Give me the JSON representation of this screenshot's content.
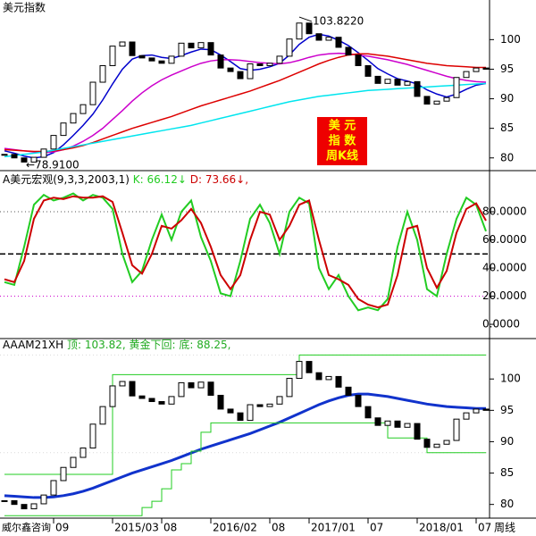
{
  "chart_data": [
    {
      "type": "candlestick",
      "title": "美元指数",
      "values": [
        80.6,
        80.0,
        79.3,
        80.1,
        81.5,
        83.8,
        85.9,
        87.5,
        89.0,
        92.8,
        95.6,
        98.9,
        99.6,
        97.3,
        96.9,
        96.4,
        96.0,
        97.2,
        99.4,
        98.6,
        99.5,
        97.4,
        95.2,
        94.6,
        93.4,
        95.9,
        95.6,
        96.0,
        97.2,
        100.1,
        102.8,
        101.0,
        99.9,
        100.4,
        98.7,
        97.4,
        95.6,
        93.8,
        92.6,
        93.3,
        92.3,
        92.9,
        90.4,
        89.1,
        89.6,
        90.2,
        93.6,
        94.6,
        95.2,
        95.0
      ],
      "color_up": "#ffffff",
      "color_down": "#000000",
      "edge_color": "#000000",
      "lines": [
        {
          "color": "#0000cc",
          "values": [
            81.2,
            80.8,
            80.3,
            80.0,
            80.2,
            80.9,
            82.2,
            83.8,
            85.5,
            87.4,
            89.8,
            92.5,
            95.0,
            96.7,
            97.3,
            97.4,
            97.0,
            96.8,
            97.3,
            97.9,
            98.4,
            98.3,
            97.4,
            96.3,
            95.1,
            94.8,
            95.0,
            95.4,
            96.0,
            97.4,
            99.2,
            100.4,
            100.9,
            100.6,
            99.9,
            99.0,
            97.8,
            96.5,
            95.1,
            94.2,
            93.4,
            93.0,
            92.5,
            91.5,
            90.8,
            90.3,
            90.8,
            91.6,
            92.3,
            92.6
          ]
        },
        {
          "color": "#cc00cc",
          "values": [
            81.6,
            81.4,
            81.2,
            81.0,
            80.9,
            81.0,
            81.4,
            82.0,
            82.8,
            83.8,
            85.0,
            86.5,
            88.0,
            89.6,
            91.0,
            92.2,
            93.2,
            94.0,
            94.7,
            95.4,
            96.0,
            96.4,
            96.6,
            96.6,
            96.5,
            96.3,
            96.1,
            96.0,
            95.9,
            96.1,
            96.5,
            97.0,
            97.4,
            97.6,
            97.7,
            97.6,
            97.4,
            97.2,
            96.9,
            96.6,
            96.2,
            95.8,
            95.3,
            94.8,
            94.3,
            93.8,
            93.4,
            93.1,
            92.9,
            92.8
          ]
        },
        {
          "color": "#dd0000",
          "values": [
            81.4,
            81.3,
            81.2,
            81.1,
            81.1,
            81.2,
            81.4,
            81.7,
            82.1,
            82.6,
            83.2,
            83.8,
            84.4,
            85.0,
            85.5,
            86.0,
            86.5,
            87.0,
            87.6,
            88.2,
            88.8,
            89.3,
            89.8,
            90.3,
            90.8,
            91.3,
            91.9,
            92.5,
            93.1,
            93.8,
            94.5,
            95.2,
            95.9,
            96.5,
            97.0,
            97.4,
            97.6,
            97.6,
            97.4,
            97.2,
            96.9,
            96.6,
            96.3,
            96.0,
            95.8,
            95.6,
            95.5,
            95.4,
            95.3,
            95.3
          ]
        },
        {
          "color": "#00e5ee",
          "values": [
            80.2,
            80.4,
            80.6,
            80.8,
            81.0,
            81.3,
            81.6,
            81.9,
            82.2,
            82.5,
            82.8,
            83.1,
            83.4,
            83.7,
            84.0,
            84.3,
            84.6,
            84.9,
            85.2,
            85.5,
            85.9,
            86.3,
            86.7,
            87.1,
            87.5,
            87.9,
            88.3,
            88.7,
            89.1,
            89.5,
            89.8,
            90.1,
            90.4,
            90.6,
            90.8,
            91.0,
            91.2,
            91.4,
            91.5,
            91.6,
            91.7,
            91.8,
            91.9,
            92.0,
            92.1,
            92.2,
            92.3,
            92.4,
            92.5,
            92.6
          ]
        }
      ],
      "annotations": [
        {
          "value": 103.822,
          "label": "103.8220"
        },
        {
          "value": 78.91,
          "label": "←78.9100"
        }
      ],
      "badge": [
        "美  元",
        "指  数",
        "周K线"
      ],
      "ylim": [
        78.0,
        106.7
      ],
      "yticks": [
        80,
        85,
        90,
        95,
        100
      ]
    },
    {
      "type": "kd",
      "title": "A美元宏观(9,3,3,2003,1)",
      "series": [
        {
          "name": "K",
          "label": "K: 66.12↓",
          "color": "#22cc22",
          "values": [
            30,
            28,
            55,
            85,
            92,
            88,
            90,
            93,
            88,
            92,
            90,
            82,
            50,
            30,
            38,
            60,
            78,
            60,
            80,
            88,
            62,
            45,
            22,
            20,
            45,
            75,
            85,
            72,
            50,
            80,
            90,
            86,
            40,
            25,
            35,
            20,
            10,
            12,
            10,
            18,
            55,
            80,
            60,
            25,
            20,
            50,
            75,
            90,
            85,
            66.12
          ]
        },
        {
          "name": "D",
          "label": "D: 73.66↓,",
          "color": "#cc0000",
          "values": [
            32,
            30,
            45,
            75,
            88,
            90,
            89,
            91,
            90,
            90,
            91,
            87,
            65,
            42,
            36,
            50,
            70,
            68,
            74,
            82,
            72,
            55,
            35,
            25,
            35,
            60,
            80,
            78,
            60,
            70,
            85,
            88,
            60,
            35,
            32,
            28,
            18,
            14,
            12,
            14,
            35,
            68,
            70,
            40,
            26,
            38,
            65,
            82,
            86,
            73.66
          ]
        }
      ],
      "levels": [
        {
          "value": 80,
          "color": "#555555"
        },
        {
          "value": 50,
          "color": "#000000"
        },
        {
          "value": 20,
          "color": "#cc00cc"
        }
      ],
      "ylim": [
        -9.5,
        108.6
      ],
      "yticks": [
        {
          "value": 80,
          "label": "80.0000"
        },
        {
          "value": 60,
          "label": "60.0000"
        },
        {
          "value": 40,
          "label": "40.0000"
        },
        {
          "value": 20,
          "label": "20.0000"
        },
        {
          "value": 0,
          "label": "0.0000"
        }
      ]
    },
    {
      "type": "channel",
      "title": "AAAM21XH",
      "top": {
        "value": 103.82,
        "label": "顶: 103.82,",
        "color": "#22aa22"
      },
      "note": "黄金下回:",
      "bottom": {
        "value": 88.25,
        "label": "底: 88.25,",
        "color": "#22aa22"
      },
      "values": [
        80.6,
        80.0,
        79.3,
        80.1,
        81.5,
        83.8,
        85.9,
        87.5,
        89.0,
        92.8,
        95.6,
        98.9,
        99.6,
        97.3,
        96.9,
        96.4,
        96.0,
        97.2,
        99.4,
        98.6,
        99.5,
        97.4,
        95.2,
        94.6,
        93.4,
        95.9,
        95.6,
        96.0,
        97.2,
        100.1,
        102.8,
        101.0,
        99.9,
        100.4,
        98.7,
        97.4,
        95.6,
        93.8,
        92.6,
        93.3,
        92.3,
        92.9,
        90.4,
        89.1,
        89.6,
        90.2,
        93.6,
        94.6,
        95.2,
        95.0
      ],
      "color_up": "#ffffff",
      "color_down": "#000000",
      "edge_color": "#000000",
      "lines": [
        {
          "color": "#1133cc",
          "width": 3,
          "values": [
            81.4,
            81.3,
            81.2,
            81.1,
            81.1,
            81.2,
            81.4,
            81.7,
            82.1,
            82.6,
            83.2,
            83.8,
            84.4,
            85.0,
            85.5,
            86.0,
            86.5,
            87.0,
            87.6,
            88.2,
            88.8,
            89.3,
            89.8,
            90.3,
            90.8,
            91.3,
            91.9,
            92.5,
            93.1,
            93.8,
            94.5,
            95.2,
            95.9,
            96.5,
            97.0,
            97.4,
            97.6,
            97.6,
            97.4,
            97.2,
            96.9,
            96.6,
            96.3,
            96.0,
            95.8,
            95.6,
            95.5,
            95.4,
            95.3,
            95.3
          ]
        },
        {
          "color": "#22cc22",
          "width": 1,
          "step": true,
          "values": [
            84.8,
            84.8,
            84.8,
            84.8,
            84.8,
            84.8,
            84.8,
            84.8,
            84.8,
            84.8,
            84.8,
            100.7,
            100.7,
            100.7,
            100.7,
            100.7,
            100.7,
            100.7,
            100.7,
            100.7,
            100.7,
            100.7,
            100.7,
            100.7,
            100.7,
            100.7,
            100.7,
            100.7,
            100.7,
            100.7,
            103.82,
            103.82,
            103.82,
            103.82,
            103.82,
            103.82,
            103.82,
            103.82,
            103.82,
            103.82,
            103.82,
            103.82,
            103.82,
            103.82,
            103.82,
            103.82,
            103.82,
            103.82,
            103.82,
            103.82
          ]
        },
        {
          "color": "#22cc22",
          "width": 1,
          "step": true,
          "values": [
            78.2,
            78.2,
            78.2,
            78.2,
            78.2,
            78.2,
            78.2,
            78.2,
            78.2,
            78.2,
            78.2,
            78.2,
            78.2,
            78.2,
            79.5,
            80.5,
            82.5,
            85.5,
            86.5,
            88.5,
            91.5,
            93.0,
            93.0,
            93.0,
            93.0,
            93.0,
            93.0,
            93.0,
            93.0,
            93.0,
            93.0,
            93.0,
            93.0,
            93.0,
            93.0,
            93.0,
            93.0,
            93.0,
            93.0,
            90.6,
            90.6,
            90.6,
            90.6,
            88.25,
            88.25,
            88.25,
            88.25,
            88.25,
            88.25,
            88.25
          ]
        }
      ],
      "categories": [
        null,
        null,
        null,
        null,
        null,
        "09",
        null,
        null,
        null,
        null,
        null,
        "2015/03",
        null,
        null,
        null,
        null,
        "08",
        null,
        null,
        null,
        null,
        "2016/02",
        null,
        null,
        null,
        null,
        null,
        "08",
        null,
        null,
        null,
        "2017/01",
        null,
        null,
        null,
        null,
        null,
        "07",
        null,
        null,
        null,
        null,
        "2018/01",
        null,
        null,
        null,
        null,
        null,
        "07",
        null
      ],
      "period": "周线",
      "ylim": [
        78.1,
        106.3
      ],
      "yticks": [
        80,
        85,
        90,
        95,
        100
      ]
    }
  ],
  "watermark": "威尔鑫咨询"
}
